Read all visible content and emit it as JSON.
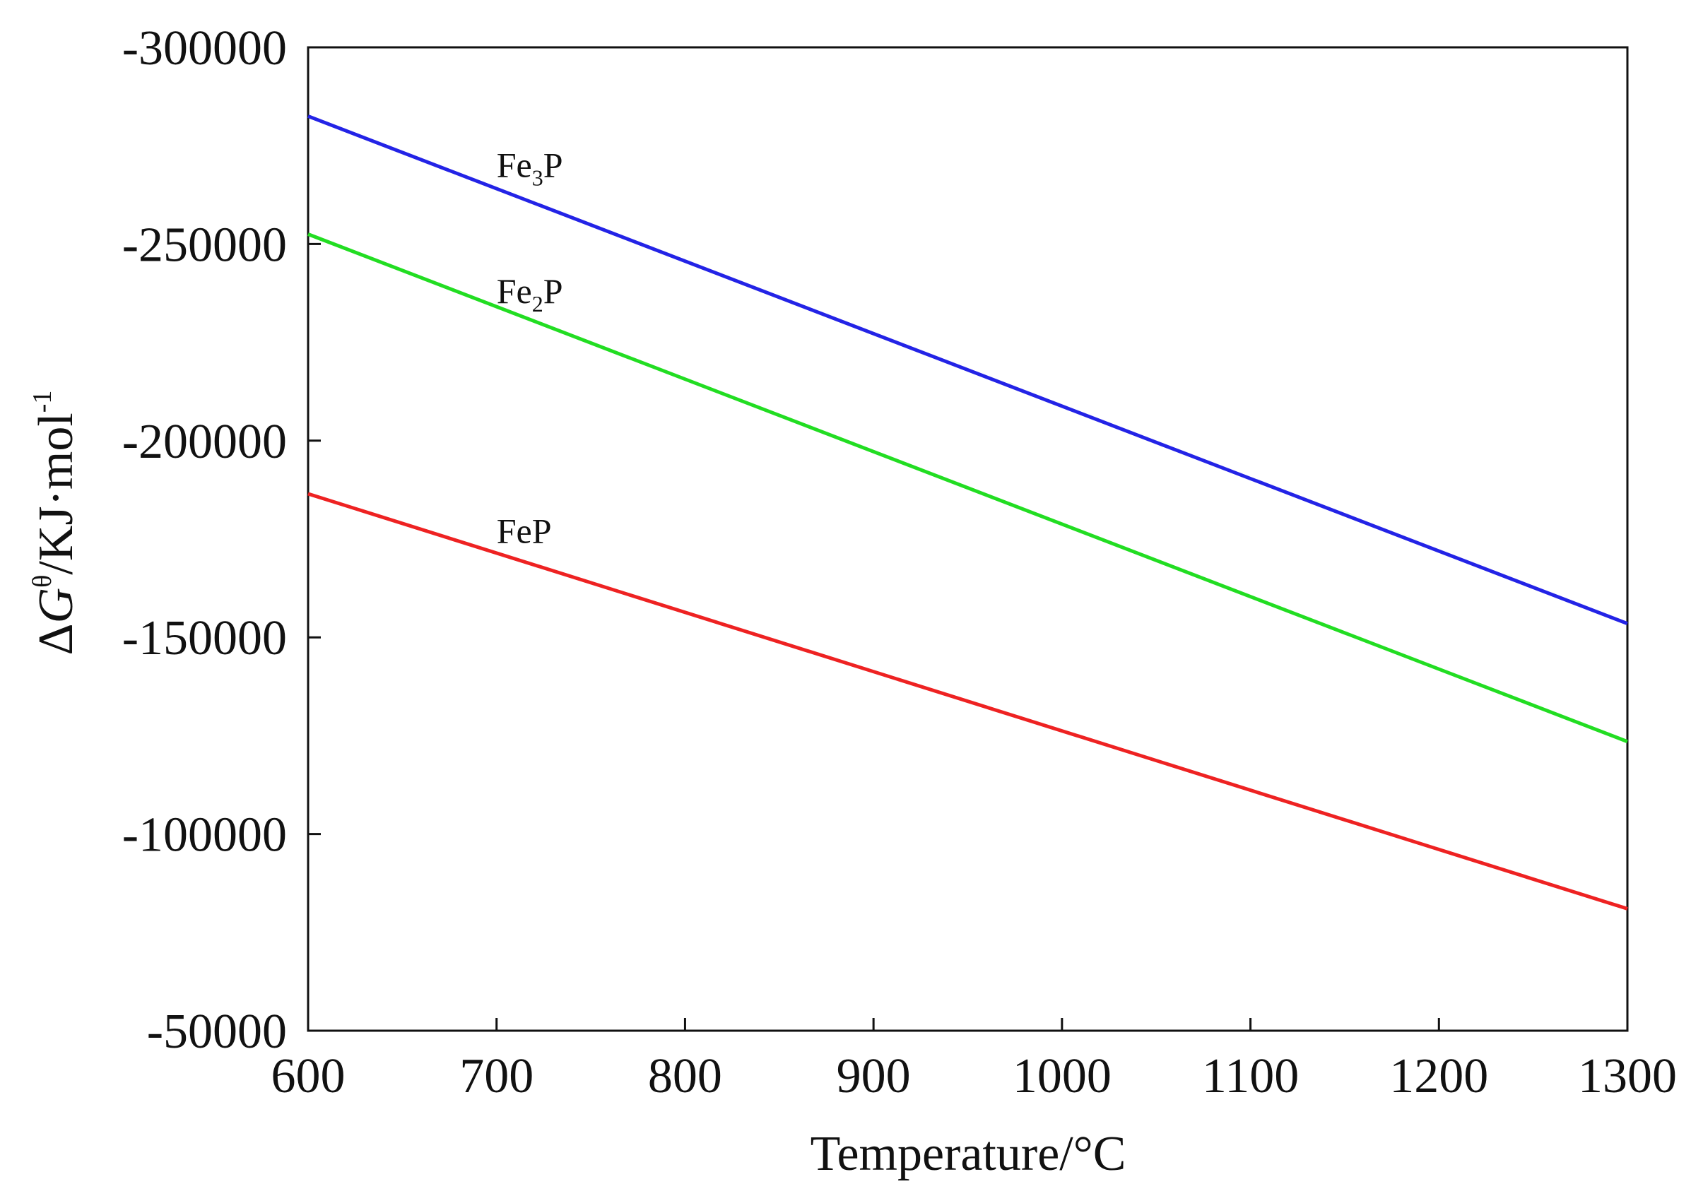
{
  "chart_data": {
    "type": "line",
    "title": "",
    "xlabel": "Temperature/°C",
    "ylabel": {
      "delta": "Δ",
      "var": "G",
      "superscript": "θ",
      "unit": "/KJ·mol",
      "unit_exponent": "-1"
    },
    "xlim": [
      600,
      1300
    ],
    "ylim": [
      -50000,
      -300000
    ],
    "x_ticks": [
      600,
      700,
      800,
      900,
      1000,
      1100,
      1200,
      1300
    ],
    "x_tick_labels": [
      "600",
      "700",
      "800",
      "900",
      "1000",
      "1100",
      "1200",
      "1300"
    ],
    "y_ticks": [
      -300000,
      -250000,
      -200000,
      -150000,
      -100000,
      -50000
    ],
    "y_tick_labels": [
      "-300000",
      "-250000",
      "-200000",
      "-150000",
      "-100000",
      "-50000"
    ],
    "grid": false,
    "series": [
      {
        "name": "Fe3P",
        "label_parts": {
          "base": "Fe",
          "sub": "3",
          "tail": "P"
        },
        "label_at": [
          700,
          -267000
        ],
        "color": "#2323e6",
        "x": [
          600,
          1300
        ],
        "y": [
          -282500,
          -153500
        ]
      },
      {
        "name": "Fe2P",
        "label_parts": {
          "base": "Fe",
          "sub": "2",
          "tail": "P"
        },
        "label_at": [
          700,
          -235000
        ],
        "color": "#22dd22",
        "x": [
          600,
          1300
        ],
        "y": [
          -252500,
          -123500
        ]
      },
      {
        "name": "FeP",
        "label_parts": {
          "base": "FeP",
          "sub": "",
          "tail": ""
        },
        "label_at": [
          700,
          -174000
        ],
        "color": "#ee2222",
        "x": [
          600,
          1300
        ],
        "y": [
          -186500,
          -81000
        ]
      }
    ]
  }
}
